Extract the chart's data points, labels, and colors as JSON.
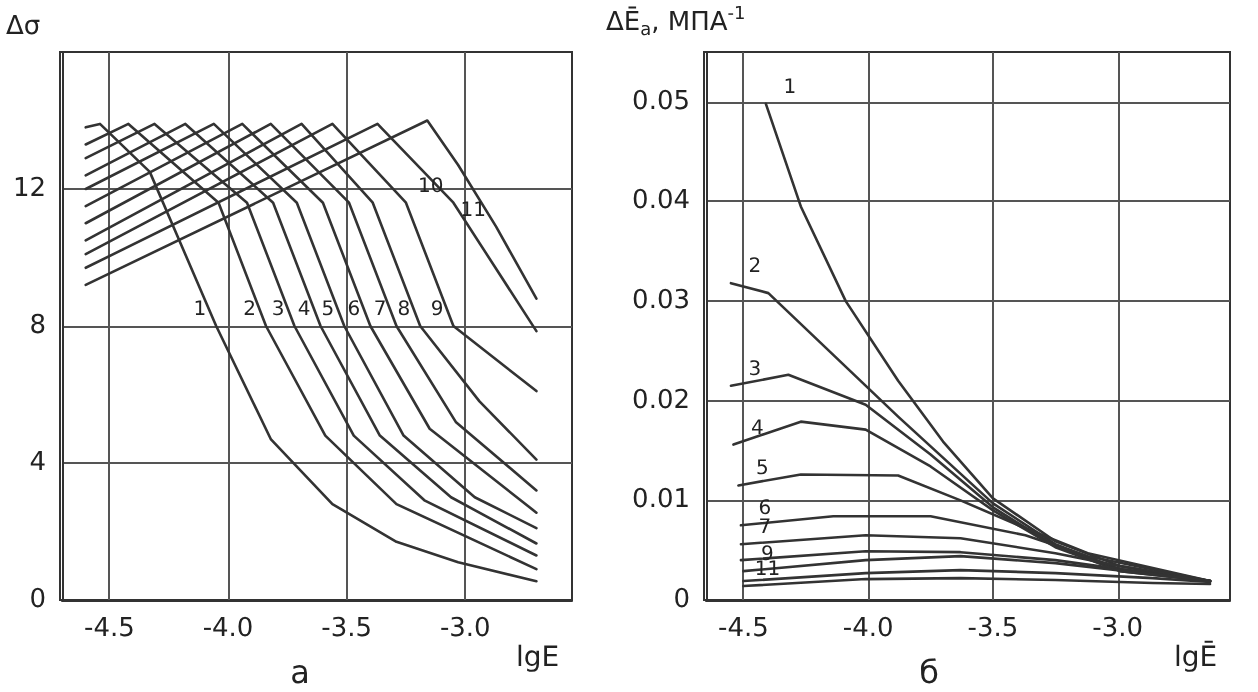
{
  "chart_data": [
    {
      "type": "line",
      "ylabel": "Δσ",
      "xlabel": "lgE",
      "annotations": [
        "а"
      ],
      "xlim": [
        -4.7,
        -2.55
      ],
      "ylim": [
        0,
        16
      ],
      "xticks": [
        {
          "value": -4.5,
          "label": "-4.5"
        },
        {
          "value": -4,
          "label": "-4.0"
        },
        {
          "value": -3.5,
          "label": "-3.5"
        },
        {
          "value": -3,
          "label": "-3.0"
        }
      ],
      "yticks": [
        0,
        4,
        8,
        12
      ],
      "grid": true,
      "legend": false,
      "marker": "none",
      "line_style": "solid",
      "series": [
        {
          "name": "1",
          "color": "#333333",
          "x": [
            -4.6,
            -4.54,
            -4.33,
            -4.05,
            -3.82,
            -3.56,
            -3.29,
            -3.03,
            -2.7
          ],
          "values": [
            13.8,
            13.9,
            12.5,
            8,
            4.7,
            2.8,
            1.7,
            1.1,
            0.55
          ]
        },
        {
          "name": "2",
          "color": "#333333",
          "x": [
            -4.6,
            -4.42,
            -4.04,
            -3.84,
            -3.59,
            -3.29,
            -2.7
          ],
          "values": [
            13.3,
            13.9,
            11.6,
            8,
            4.8,
            2.8,
            0.9
          ]
        },
        {
          "name": "3",
          "color": "#333333",
          "x": [
            -4.6,
            -4.31,
            -3.92,
            -3.72,
            -3.47,
            -3.17,
            -2.7
          ],
          "values": [
            12.9,
            13.9,
            11.6,
            8,
            4.8,
            2.9,
            1.3
          ]
        },
        {
          "name": "4",
          "color": "#333333",
          "x": [
            -4.6,
            -4.18,
            -3.81,
            -3.61,
            -3.36,
            -3.06,
            -2.7
          ],
          "values": [
            12.4,
            13.9,
            11.6,
            8,
            4.8,
            3,
            1.65
          ]
        },
        {
          "name": "5",
          "color": "#333333",
          "x": [
            -4.6,
            -4.06,
            -3.71,
            -3.51,
            -3.26,
            -2.96,
            -2.7
          ],
          "values": [
            12,
            13.9,
            11.6,
            8,
            4.8,
            3,
            2.1
          ]
        },
        {
          "name": "6",
          "color": "#333333",
          "x": [
            -4.6,
            -3.94,
            -3.6,
            -3.4,
            -3.15,
            -2.7
          ],
          "values": [
            11.5,
            13.9,
            11.6,
            8,
            5,
            2.55
          ]
        },
        {
          "name": "7",
          "color": "#333333",
          "x": [
            -4.6,
            -3.82,
            -3.49,
            -3.29,
            -3.04,
            -2.7
          ],
          "values": [
            11,
            13.9,
            11.6,
            8,
            5.2,
            3.2
          ]
        },
        {
          "name": "8",
          "color": "#333333",
          "x": [
            -4.6,
            -3.69,
            -3.39,
            -3.19,
            -2.94,
            -2.7
          ],
          "values": [
            10.5,
            13.9,
            11.6,
            8,
            5.8,
            4.1
          ]
        },
        {
          "name": "9",
          "color": "#333333",
          "x": [
            -4.6,
            -3.56,
            -3.25,
            -3.05,
            -2.7
          ],
          "values": [
            10.1,
            13.9,
            11.6,
            8,
            6.1
          ]
        },
        {
          "name": "10",
          "color": "#333333",
          "x": [
            -4.6,
            -3.37,
            -3.05,
            -2.7
          ],
          "values": [
            9.7,
            13.9,
            11.6,
            7.85
          ]
        },
        {
          "name": "11",
          "color": "#333333",
          "x": [
            -4.6,
            -3.16,
            -3.03,
            -2.87,
            -2.7
          ],
          "values": [
            9.2,
            14,
            12.7,
            10.9,
            8.8
          ]
        }
      ]
    },
    {
      "type": "line",
      "ylabel": "ΔĒ$_{a}$, МПА$^{-1}$",
      "xlabel": "lgĒ",
      "annotations": [
        "б"
      ],
      "xlim": [
        -4.65,
        -2.55
      ],
      "ylim": [
        0,
        0.055
      ],
      "xticks": [
        {
          "value": -4.5,
          "label": "-4.5"
        },
        {
          "value": -4,
          "label": "-4.0"
        },
        {
          "value": -3.5,
          "label": "-3.5"
        },
        {
          "value": -3,
          "label": "-3.0"
        }
      ],
      "yticks": [
        0,
        0.01,
        0.02,
        0.03,
        0.04,
        0.05
      ],
      "grid": true,
      "legend": false,
      "marker": "none",
      "line_style": "solid",
      "series": [
        {
          "name": "1",
          "color": "#333333",
          "x": [
            -4.41,
            -4.27,
            -4.09,
            -3.88,
            -3.7,
            -3.5,
            -3.25,
            -2.99,
            -2.63
          ],
          "values": [
            0.0498,
            0.0395,
            0.03,
            0.022,
            0.0159,
            0.0102,
            0.0059,
            0.0034,
            0.0019
          ]
        },
        {
          "name": "2",
          "color": "#333333",
          "x": [
            -4.55,
            -4.4,
            -4.14,
            -3.88,
            -3.5,
            -3.25,
            -2.99,
            -2.63
          ],
          "values": [
            0.0318,
            0.0308,
            0.0246,
            0.0184,
            0.0097,
            0.0056,
            0.0031,
            0.0019
          ]
        },
        {
          "name": "3",
          "color": "#333333",
          "x": [
            -4.55,
            -4.32,
            -4.01,
            -3.75,
            -3.5,
            -3.25,
            -2.99,
            -2.63
          ],
          "values": [
            0.0215,
            0.0226,
            0.0196,
            0.0146,
            0.0093,
            0.0054,
            0.0029,
            0.0019
          ]
        },
        {
          "name": "4",
          "color": "#333333",
          "x": [
            -4.54,
            -4.27,
            -4.01,
            -3.75,
            -3.5,
            -3.25,
            -2.99,
            -2.63
          ],
          "values": [
            0.0156,
            0.0179,
            0.0171,
            0.0134,
            0.009,
            0.0053,
            0.0029,
            0.0019
          ]
        },
        {
          "name": "5",
          "color": "#333333",
          "x": [
            -4.52,
            -4.27,
            -3.88,
            -3.63,
            -3.37,
            -3.12,
            -2.63
          ],
          "values": [
            0.0115,
            0.0126,
            0.0125,
            0.01,
            0.0072,
            0.0047,
            0.0019
          ]
        },
        {
          "name": "6",
          "color": "#333333",
          "x": [
            -4.51,
            -4.14,
            -3.75,
            -3.37,
            -3.12,
            -2.63
          ],
          "values": [
            0.0075,
            0.0084,
            0.0084,
            0.0065,
            0.0044,
            0.0019
          ]
        },
        {
          "name": "7",
          "color": "#333333",
          "x": [
            -4.51,
            -4.01,
            -3.63,
            -3.25,
            -2.99,
            -2.63
          ],
          "values": [
            0.0056,
            0.0065,
            0.0062,
            0.0047,
            0.0034,
            0.0019
          ]
        },
        {
          "color": "#333333",
          "x": [
            -4.51,
            -4.01,
            -3.63,
            -3.25,
            -2.99,
            -2.63
          ],
          "values": [
            0.004,
            0.0049,
            0.0048,
            0.004,
            0.0031,
            0.0019
          ]
        },
        {
          "name": "9",
          "color": "#333333",
          "x": [
            -4.5,
            -4.01,
            -3.63,
            -3.25,
            -2.86,
            -2.63
          ],
          "values": [
            0.0029,
            0.004,
            0.0044,
            0.0037,
            0.0026,
            0.0019
          ]
        },
        {
          "color": "#333333",
          "x": [
            -4.5,
            -4.01,
            -3.63,
            -3.25,
            -2.86,
            -2.63
          ],
          "values": [
            0.0019,
            0.0027,
            0.003,
            0.0027,
            0.0022,
            0.0018
          ]
        },
        {
          "name": "11",
          "color": "#333333",
          "x": [
            -4.5,
            -4.01,
            -3.63,
            -3.25,
            -2.86,
            -2.63
          ],
          "values": [
            0.0014,
            0.0021,
            0.0022,
            0.002,
            0.0017,
            0.0016
          ]
        }
      ]
    }
  ]
}
